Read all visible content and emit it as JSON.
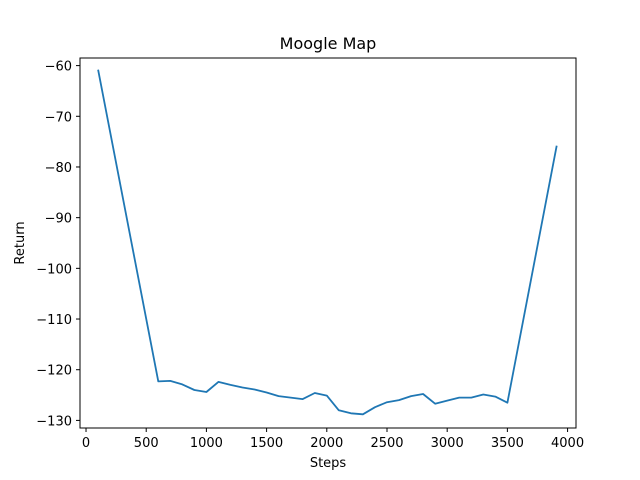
{
  "chart_data": {
    "type": "line",
    "title": "Moogle Map",
    "xlabel": "Steps",
    "ylabel": "Return",
    "xlim": [
      -50,
      4070
    ],
    "ylim": [
      -131.5,
      -58.5
    ],
    "xticks": [
      0,
      500,
      1000,
      1500,
      2000,
      2500,
      3000,
      3500,
      4000
    ],
    "yticks": [
      -130,
      -120,
      -110,
      -100,
      -90,
      -80,
      -70,
      -60
    ],
    "xtick_labels": [
      "0",
      "500",
      "1000",
      "1500",
      "2000",
      "2500",
      "3000",
      "3500",
      "4000"
    ],
    "ytick_labels": [
      "−130",
      "−120",
      "−110",
      "−100",
      "−90",
      "−80",
      "−70",
      "−60"
    ],
    "grid": false,
    "series": [
      {
        "color": "#1f77b4",
        "x": [
          100,
          600,
          700,
          800,
          900,
          1000,
          1100,
          1200,
          1300,
          1400,
          1500,
          1600,
          1700,
          1800,
          1900,
          2000,
          2100,
          2200,
          2300,
          2400,
          2500,
          2600,
          2700,
          2800,
          2900,
          3000,
          3100,
          3200,
          3300,
          3400,
          3500,
          3910
        ],
        "y": [
          -60.8,
          -122.3,
          -122.2,
          -122.9,
          -124.0,
          -124.4,
          -122.4,
          -123.0,
          -123.5,
          -123.9,
          -124.5,
          -125.2,
          -125.5,
          -125.8,
          -124.6,
          -125.1,
          -128.0,
          -128.6,
          -128.8,
          -127.4,
          -126.4,
          -126.0,
          -125.2,
          -124.8,
          -126.7,
          -126.1,
          -125.5,
          -125.5,
          -124.9,
          -125.3,
          -126.5,
          -75.8
        ]
      }
    ]
  }
}
